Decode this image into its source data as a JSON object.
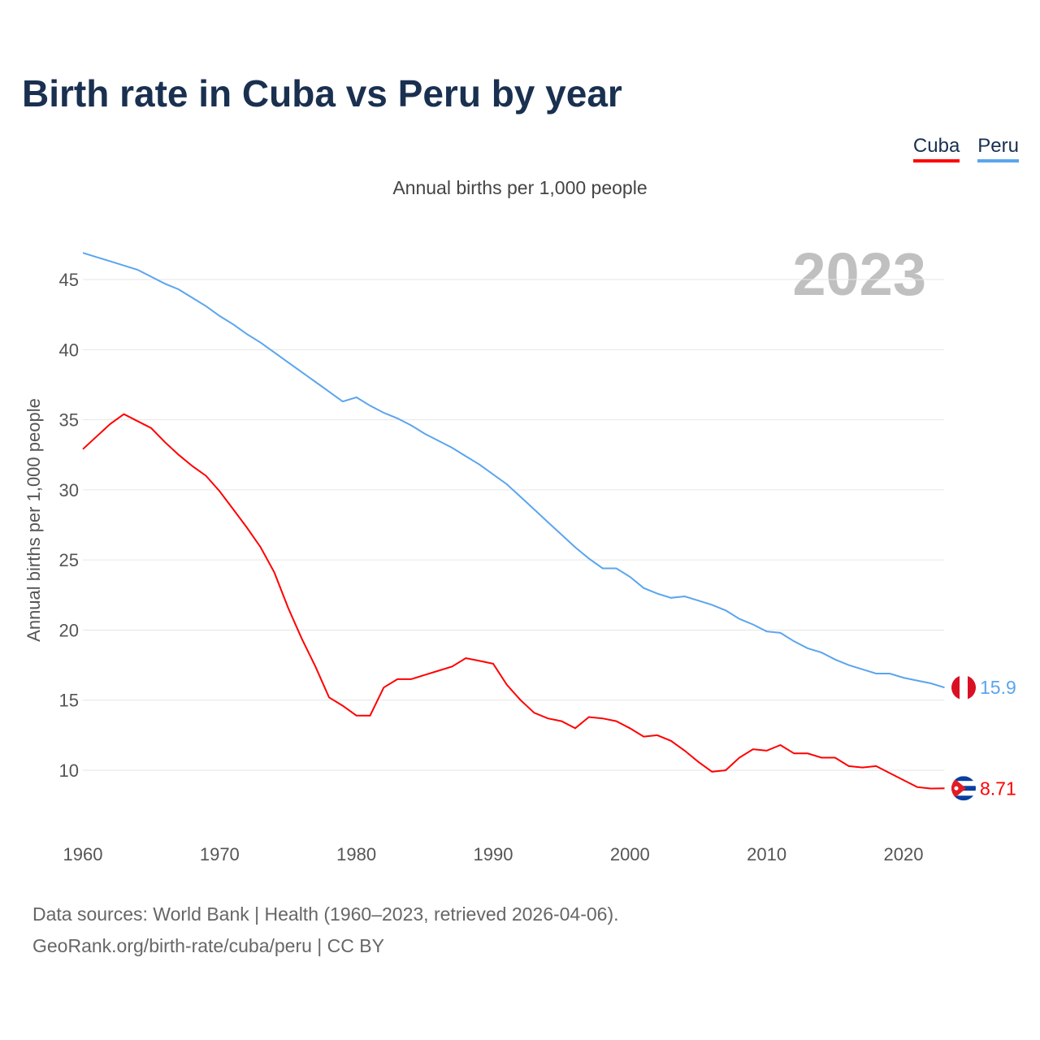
{
  "chart_data": {
    "type": "line",
    "title": "Birth rate in Cuba vs Peru by year",
    "subtitle": "Annual births per 1,000 people",
    "ylabel": "Annual births per 1,000 people",
    "xlabel": "",
    "current_year": "2023",
    "xlim": [
      1960,
      2023
    ],
    "ylim": [
      6,
      47
    ],
    "grid": true,
    "legend_position": "top-right",
    "xticks": [
      1960,
      1970,
      1980,
      1990,
      2000,
      2010,
      2020
    ],
    "yticks": [
      10,
      15,
      20,
      25,
      30,
      35,
      40,
      45
    ],
    "x": [
      1960,
      1961,
      1962,
      1963,
      1964,
      1965,
      1966,
      1967,
      1968,
      1969,
      1970,
      1971,
      1972,
      1973,
      1974,
      1975,
      1976,
      1977,
      1978,
      1979,
      1980,
      1981,
      1982,
      1983,
      1984,
      1985,
      1986,
      1987,
      1988,
      1989,
      1990,
      1991,
      1992,
      1993,
      1994,
      1995,
      1996,
      1997,
      1998,
      1999,
      2000,
      2001,
      2002,
      2003,
      2004,
      2005,
      2006,
      2007,
      2008,
      2009,
      2010,
      2011,
      2012,
      2013,
      2014,
      2015,
      2016,
      2017,
      2018,
      2019,
      2020,
      2021,
      2022,
      2023
    ],
    "series": [
      {
        "name": "Cuba",
        "color": "#ff0000",
        "end_label": "8.71",
        "values": [
          32.9,
          33.8,
          34.7,
          35.4,
          34.9,
          34.4,
          33.4,
          32.5,
          31.7,
          31.0,
          29.9,
          28.6,
          27.3,
          25.9,
          24.1,
          21.6,
          19.4,
          17.4,
          15.2,
          14.6,
          13.9,
          13.9,
          15.9,
          16.5,
          16.5,
          16.8,
          17.1,
          17.4,
          18.0,
          17.8,
          17.6,
          16.1,
          15.0,
          14.1,
          13.7,
          13.5,
          13.0,
          13.8,
          13.7,
          13.5,
          13.0,
          12.4,
          12.5,
          12.1,
          11.4,
          10.6,
          9.9,
          10.0,
          10.9,
          11.5,
          11.4,
          11.8,
          11.2,
          11.2,
          10.9,
          10.9,
          10.3,
          10.2,
          10.3,
          9.8,
          9.3,
          8.8,
          8.7,
          8.71
        ]
      },
      {
        "name": "Peru",
        "color": "#5aa5ee",
        "end_label": "15.9",
        "values": [
          46.9,
          46.6,
          46.3,
          46.0,
          45.7,
          45.2,
          44.7,
          44.3,
          43.7,
          43.1,
          42.4,
          41.8,
          41.1,
          40.5,
          39.8,
          39.1,
          38.4,
          37.7,
          37.0,
          36.3,
          36.6,
          36.0,
          35.5,
          35.1,
          34.6,
          34.0,
          33.5,
          33.0,
          32.4,
          31.8,
          31.1,
          30.4,
          29.5,
          28.6,
          27.7,
          26.8,
          25.9,
          25.1,
          24.4,
          24.4,
          23.8,
          23.0,
          22.6,
          22.3,
          22.4,
          22.1,
          21.8,
          21.4,
          20.8,
          20.4,
          19.9,
          19.8,
          19.2,
          18.7,
          18.4,
          17.9,
          17.5,
          17.2,
          16.9,
          16.9,
          16.6,
          16.4,
          16.2,
          15.9
        ]
      }
    ]
  },
  "footer": {
    "line1": "Data sources: World Bank | Health (1960–2023, retrieved 2026-04-06).",
    "line2": "GeoRank.org/birth-rate/cuba/peru | CC BY"
  }
}
